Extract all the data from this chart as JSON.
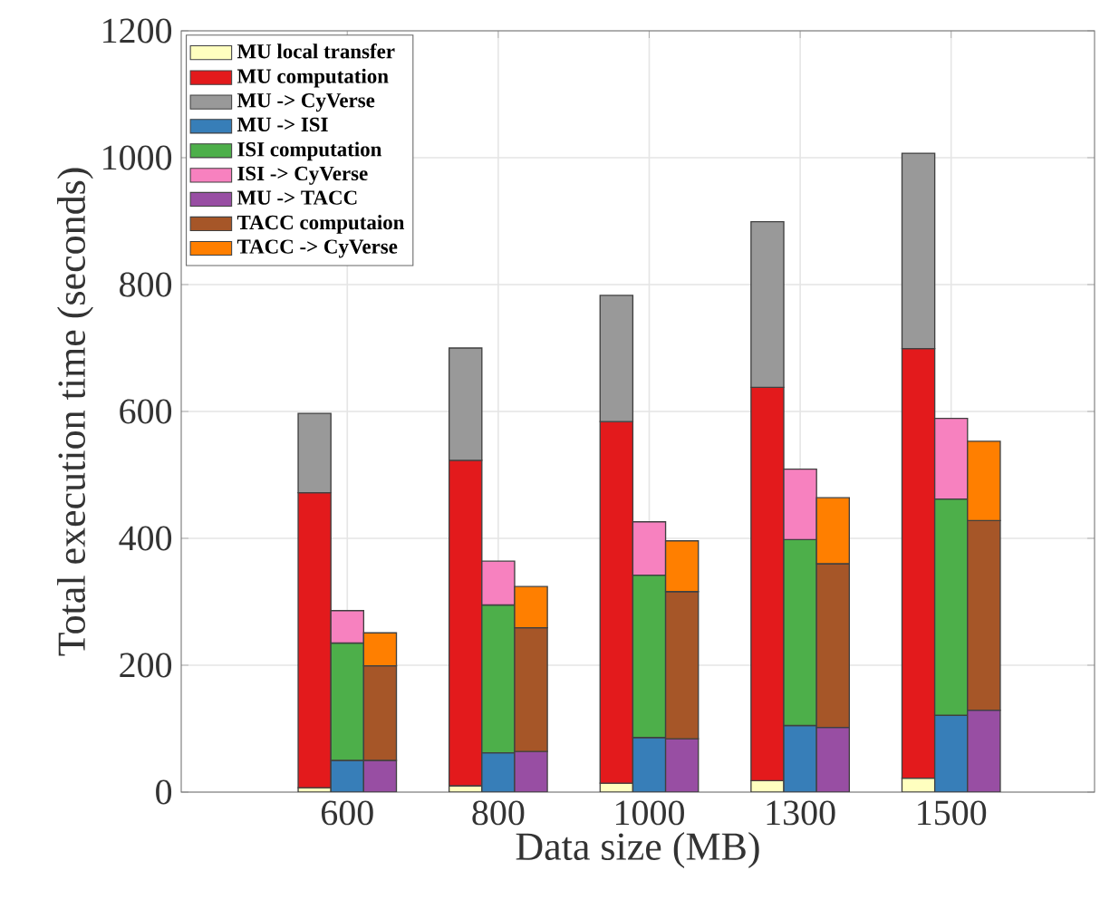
{
  "chart_data": {
    "type": "bar",
    "stacked": true,
    "xlabel": "Data size (MB)",
    "ylabel": "Total execution time (seconds)",
    "categories": [
      null,
      "600",
      null,
      null,
      "800",
      null,
      null,
      "1000",
      null,
      null,
      "1300",
      null,
      null,
      "1500",
      null
    ],
    "ylim": [
      0,
      1200
    ],
    "yticks": [
      0,
      200,
      400,
      600,
      800,
      1000,
      1200
    ],
    "grid": true,
    "legend": "top left",
    "series": [
      {
        "name": "MU local transfer",
        "color": "#ffffbf",
        "values": [
          7,
          null,
          null,
          10,
          null,
          null,
          14,
          null,
          null,
          18,
          null,
          null,
          22,
          null,
          null
        ]
      },
      {
        "name": "MU computation",
        "color": "#e31a1c",
        "values": [
          465,
          null,
          null,
          513,
          null,
          null,
          570,
          null,
          null,
          620,
          null,
          null,
          677,
          null,
          null
        ]
      },
      {
        "name": "MU -> CyVerse",
        "color": "#999999",
        "values": [
          125,
          null,
          null,
          177,
          null,
          null,
          199,
          null,
          null,
          261,
          null,
          null,
          308,
          null,
          null
        ]
      },
      {
        "name": "MU -> ISI",
        "color": "#377eb8",
        "values": [
          null,
          50,
          null,
          null,
          62,
          null,
          null,
          86,
          null,
          null,
          105,
          null,
          null,
          121,
          null
        ]
      },
      {
        "name": "ISI computation",
        "color": "#4daf4a",
        "values": [
          null,
          185,
          null,
          null,
          233,
          null,
          null,
          256,
          null,
          null,
          293,
          null,
          null,
          341,
          null
        ]
      },
      {
        "name": "ISI -> CyVerse",
        "color": "#f781bf",
        "values": [
          null,
          51,
          null,
          null,
          69,
          null,
          null,
          84,
          null,
          null,
          111,
          null,
          null,
          127,
          null
        ]
      },
      {
        "name": "MU -> TACC",
        "color": "#984ea3",
        "values": [
          null,
          null,
          50,
          null,
          null,
          64,
          null,
          null,
          84,
          null,
          null,
          102,
          null,
          null,
          129
        ]
      },
      {
        "name": "TACC computaion",
        "color": "#a65628",
        "values": [
          null,
          null,
          149,
          null,
          null,
          195,
          null,
          null,
          232,
          null,
          null,
          258,
          null,
          null,
          299
        ]
      },
      {
        "name": "TACC -> CyVerse",
        "color": "#ff7f00",
        "values": [
          null,
          null,
          52,
          null,
          null,
          65,
          null,
          null,
          80,
          null,
          null,
          104,
          null,
          null,
          125
        ]
      }
    ]
  }
}
